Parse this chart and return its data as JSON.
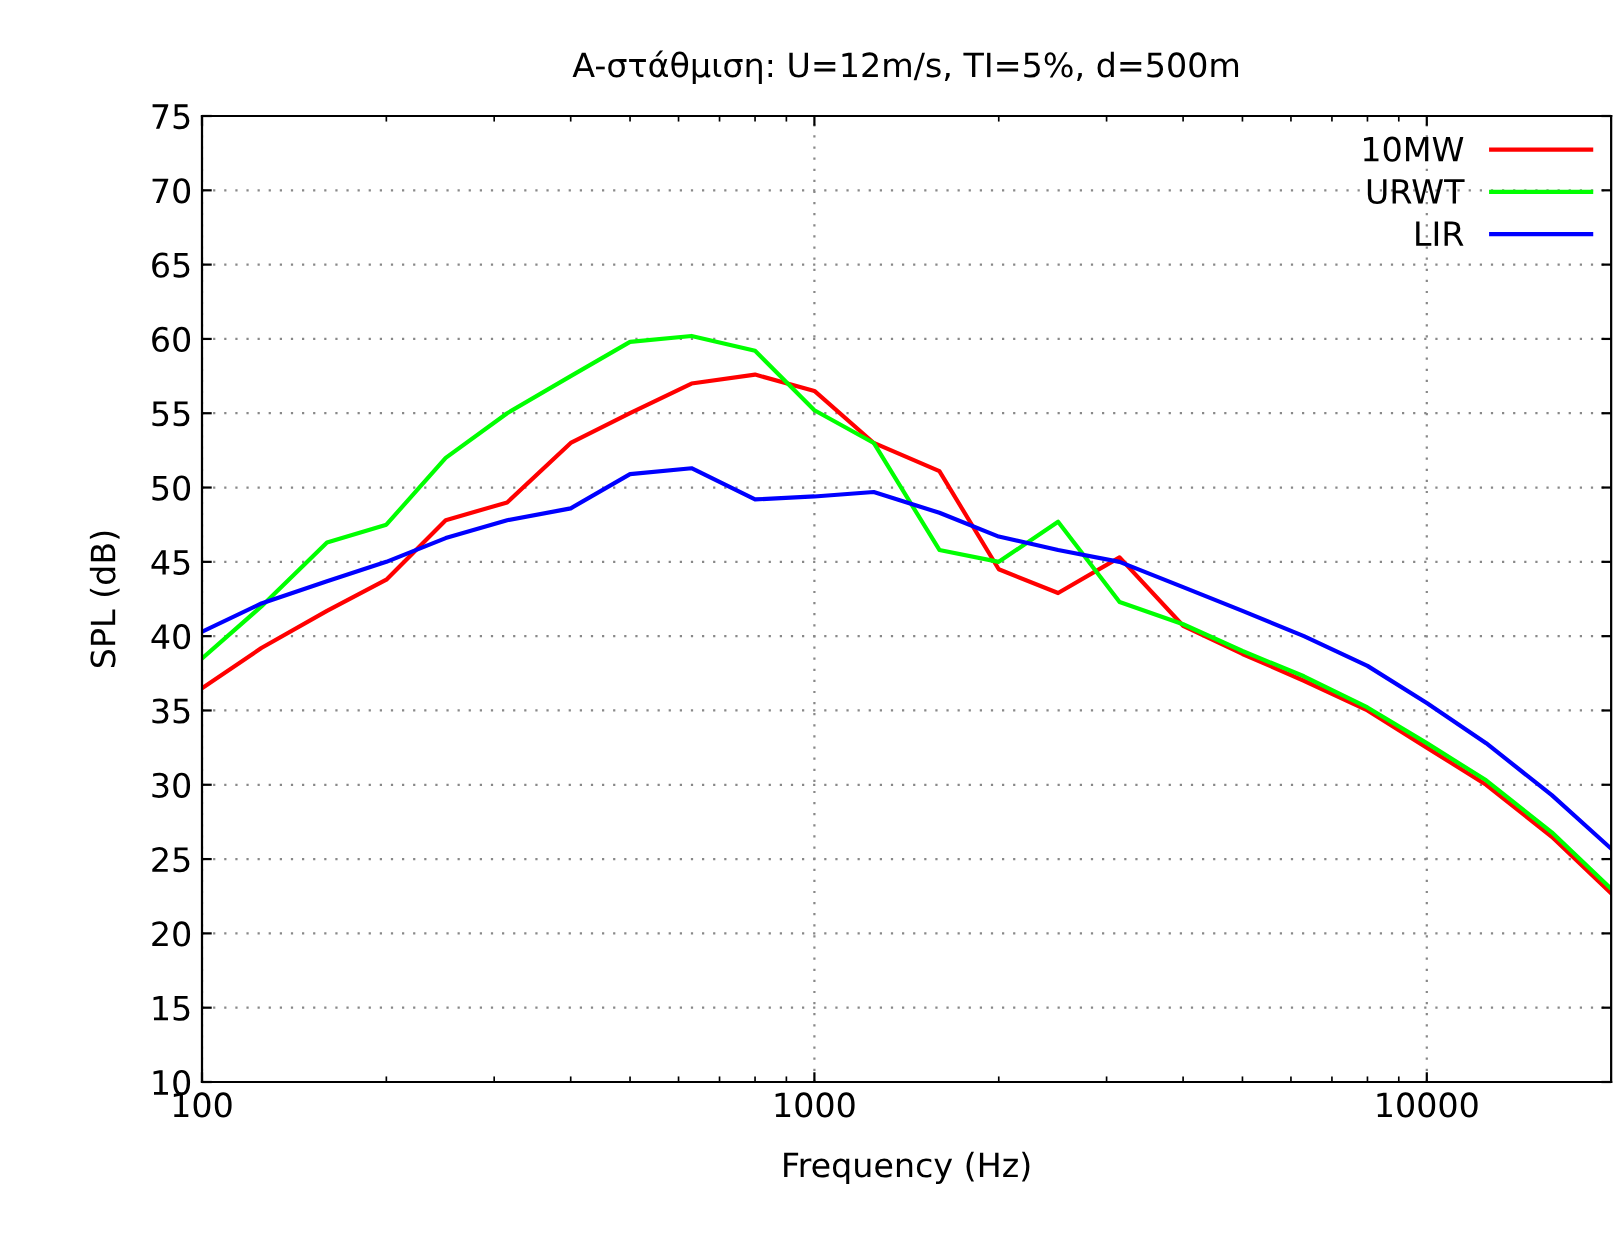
{
  "chart_data": {
    "type": "line",
    "title": "A-στάθμιση: U=12m/s, TI=5%, d=500m",
    "xlabel": "Frequency (Hz)",
    "ylabel": "SPL (dB)",
    "x": [
      100,
      125,
      160,
      200,
      250,
      315,
      400,
      500,
      630,
      800,
      1000,
      1250,
      1600,
      2000,
      2500,
      3150,
      4000,
      5000,
      6300,
      8000,
      10000,
      12500,
      16000,
      20000
    ],
    "series": [
      {
        "name": "10MW",
        "color": "#ff0000",
        "values": [
          36.5,
          39.2,
          41.7,
          43.8,
          47.8,
          49,
          53,
          55,
          57,
          57.6,
          56.5,
          53,
          51.1,
          44.5,
          42.9,
          45.3,
          40.7,
          38.8,
          37,
          35,
          32.5,
          30,
          26.5,
          22.7
        ]
      },
      {
        "name": "URWT",
        "color": "#00ff00",
        "values": [
          38.5,
          42,
          46.3,
          47.5,
          52,
          55,
          57.5,
          59.8,
          60.2,
          59.2,
          55.2,
          53,
          45.8,
          45,
          47.7,
          42.3,
          40.8,
          39,
          37.3,
          35.2,
          32.8,
          30.3,
          26.8,
          23
        ]
      },
      {
        "name": "LIR",
        "color": "#0000ff",
        "values": [
          40.3,
          42.2,
          43.7,
          45,
          46.6,
          47.8,
          48.6,
          50.9,
          51.3,
          49.2,
          49.4,
          49.7,
          48.3,
          46.7,
          45.8,
          45,
          43.3,
          41.7,
          40,
          38,
          35.5,
          32.8,
          29.3,
          25.7
        ]
      }
    ],
    "log": "x",
    "xlim": [
      100,
      20000
    ],
    "xticks": [
      100,
      1000,
      10000
    ],
    "ylim": [
      10,
      75
    ],
    "yticks": [
      10,
      15,
      20,
      25,
      30,
      35,
      40,
      45,
      50,
      55,
      60,
      65,
      70,
      75
    ],
    "grid": true,
    "legend": "top right",
    "line_style": "solid",
    "marker": "none"
  }
}
